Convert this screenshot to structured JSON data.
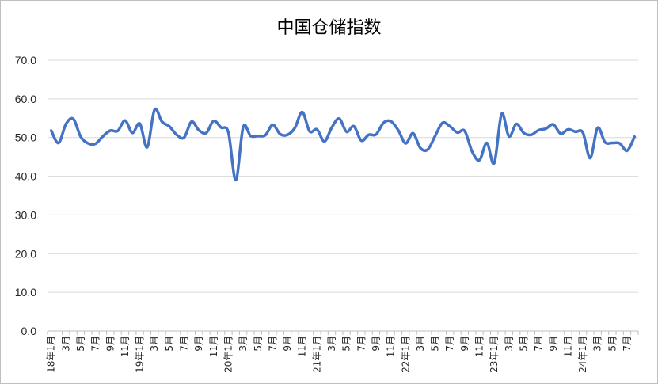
{
  "chart_data": {
    "type": "line",
    "title": "中国仓储指数",
    "xlabel": "",
    "ylabel": "",
    "ylim": [
      0,
      70
    ],
    "yticks": [
      "0.0",
      "10.0",
      "20.0",
      "30.0",
      "40.0",
      "50.0",
      "60.0",
      "70.0"
    ],
    "grid": true,
    "legend": "none",
    "color": "#4472C4",
    "categories": [
      "18年1月",
      "2月",
      "3月",
      "4月",
      "5月",
      "6月",
      "7月",
      "8月",
      "9月",
      "10月",
      "11月",
      "12月",
      "19年1月",
      "2月",
      "3月",
      "4月",
      "5月",
      "6月",
      "7月",
      "8月",
      "9月",
      "10月",
      "11月",
      "12月",
      "20年1月",
      "2月",
      "3月",
      "4月",
      "5月",
      "6月",
      "7月",
      "8月",
      "9月",
      "10月",
      "11月",
      "12月",
      "21年1月",
      "2月",
      "3月",
      "4月",
      "5月",
      "6月",
      "7月",
      "8月",
      "9月",
      "10月",
      "11月",
      "12月",
      "22年1月",
      "2月",
      "3月",
      "4月",
      "5月",
      "6月",
      "7月",
      "8月",
      "9月",
      "10月",
      "11月",
      "12月",
      "23年1月",
      "2月",
      "3月",
      "4月",
      "5月",
      "6月",
      "7月",
      "8月",
      "9月",
      "10月",
      "11月",
      "12月",
      "24年1月",
      "2月",
      "3月",
      "4月",
      "5月",
      "6月",
      "7月",
      "8月"
    ],
    "tick_labels": [
      "18年1月",
      "3月",
      "5月",
      "7月",
      "9月",
      "11月",
      "19年1月",
      "3月",
      "5月",
      "7月",
      "9月",
      "11月",
      "20年1月",
      "3月",
      "5月",
      "7月",
      "9月",
      "11月",
      "21年1月",
      "3月",
      "5月",
      "7月",
      "9月",
      "11月",
      "22年1月",
      "3月",
      "5月",
      "7月",
      "9月",
      "11月",
      "23年1月",
      "3月",
      "5月",
      "7月",
      "9月",
      "11月",
      "24年1月",
      "3月",
      "5月",
      "7月"
    ],
    "values": [
      51.8,
      48.6,
      53.5,
      54.8,
      50.2,
      48.5,
      48.4,
      50.3,
      51.8,
      51.7,
      54.4,
      51.2,
      53.6,
      47.5,
      57.2,
      54.1,
      52.9,
      50.7,
      50.0,
      54.1,
      51.9,
      51.2,
      54.3,
      52.6,
      51.3,
      39.0,
      52.7,
      50.4,
      50.4,
      50.6,
      53.3,
      50.9,
      50.7,
      52.5,
      56.6,
      51.6,
      52.1,
      49.0,
      52.6,
      54.9,
      51.5,
      52.9,
      49.2,
      50.7,
      50.8,
      53.8,
      54.2,
      51.9,
      48.5,
      51.1,
      47.3,
      46.9,
      50.4,
      53.8,
      52.9,
      51.3,
      51.7,
      46.4,
      44.2,
      48.6,
      43.4,
      56.1,
      50.3,
      53.5,
      51.2,
      50.7,
      51.9,
      52.3,
      53.4,
      51.0,
      52.1,
      51.5,
      51.3,
      44.7,
      52.5,
      48.8,
      48.6,
      48.5,
      46.6,
      50.2
    ]
  }
}
